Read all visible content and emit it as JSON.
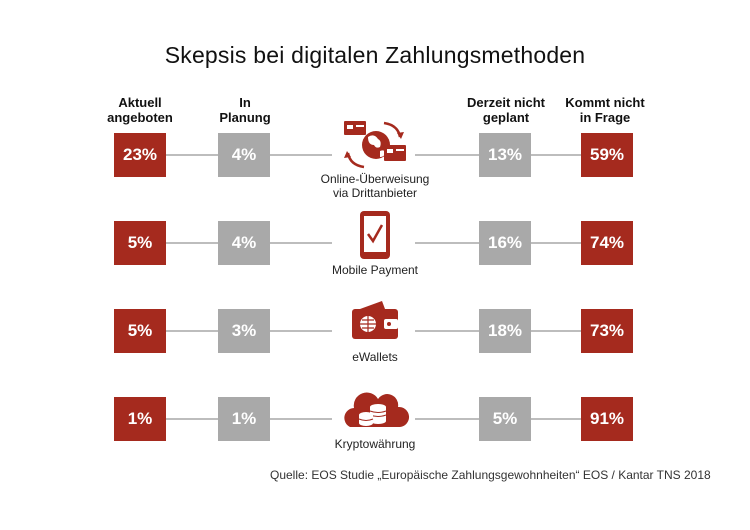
{
  "title": "Skepsis bei digitalen Zahlungsmethoden",
  "columns": [
    {
      "line1": "Aktuell",
      "line2": "angeboten"
    },
    {
      "line1": "In",
      "line2": "Planung"
    },
    {
      "line1": "Derzeit nicht",
      "line2": "geplant"
    },
    {
      "line1": "Kommt nicht",
      "line2": "in Frage"
    }
  ],
  "rows": [
    {
      "label1": "Online-Überweisung",
      "label2": "via Drittanbieter",
      "icon": "globe-transfer-icon",
      "v": [
        "23%",
        "4%",
        "13%",
        "59%"
      ]
    },
    {
      "label1": "Mobile Payment",
      "label2": "",
      "icon": "smartphone-check-icon",
      "v": [
        "5%",
        "4%",
        "16%",
        "74%"
      ]
    },
    {
      "label1": "eWallets",
      "label2": "",
      "icon": "wallet-icon",
      "v": [
        "5%",
        "3%",
        "18%",
        "73%"
      ]
    },
    {
      "label1": "Kryptowährung",
      "label2": "",
      "icon": "cloud-coins-icon",
      "v": [
        "1%",
        "1%",
        "5%",
        "91%"
      ]
    }
  ],
  "source": "Quelle: EOS Studie „Europäische Zahlungsgewohnheiten“ EOS / Kantar TNS 2018",
  "colors": {
    "accent": "#a52a1e",
    "neutral": "#a9a9a9",
    "line": "#bdbdbd"
  },
  "chart_data": {
    "type": "table",
    "title": "Skepsis bei digitalen Zahlungsmethoden",
    "columns": [
      "Aktuell angeboten",
      "In Planung",
      "Derzeit nicht geplant",
      "Kommt nicht in Frage"
    ],
    "rows": [
      "Online-Überweisung via Drittanbieter",
      "Mobile Payment",
      "eWallets",
      "Kryptowährung"
    ],
    "values": [
      [
        23,
        4,
        13,
        59
      ],
      [
        5,
        4,
        16,
        74
      ],
      [
        5,
        3,
        18,
        73
      ],
      [
        1,
        1,
        5,
        91
      ]
    ],
    "unit": "%"
  }
}
